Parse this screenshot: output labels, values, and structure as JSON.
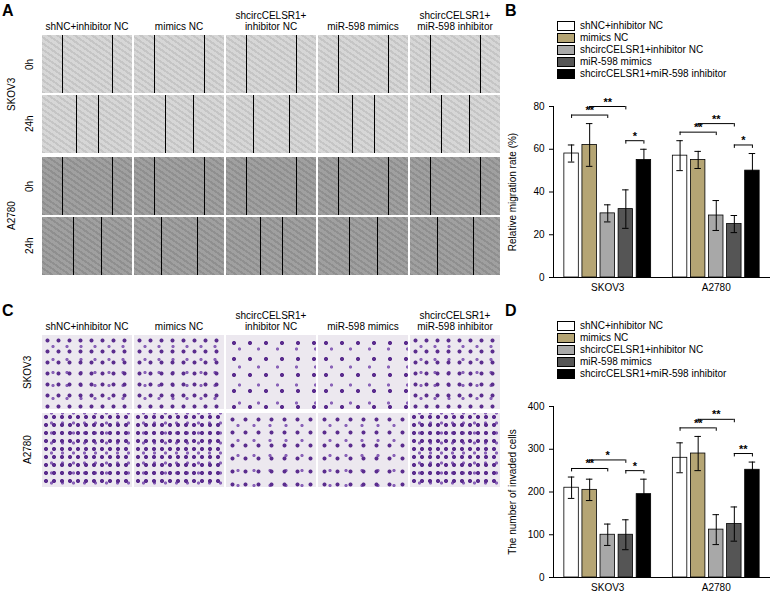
{
  "figure": {
    "panel_labels": [
      "A",
      "B",
      "C",
      "D"
    ],
    "image_panels": [
      {
        "columns": [
          "shNC+inhibitor NC",
          "mimics NC",
          "shcircCELSR1+ inhibitor NC",
          "miR-598 mimics",
          "shcircCELSR1+ miR-598 inhibitor"
        ],
        "rows": [
          {
            "cell_line": "SKOV3",
            "times": [
              "0h",
              "24h"
            ]
          },
          {
            "cell_line": "A2780",
            "times": [
              "0h",
              "24h"
            ]
          }
        ]
      },
      {
        "columns": [
          "shNC+inhibitor NC",
          "mimics NC",
          "shcircCELSR1+ inhibitor NC",
          "miR-598 mimics",
          "shcircCELSR1+ miR-598 inhibitor"
        ],
        "rows": [
          {
            "cell_line": "SKOV3"
          },
          {
            "cell_line": "A2780"
          }
        ]
      }
    ]
  },
  "chart_data": [
    {
      "type": "bar",
      "y_label": "Relative migration rate (%)",
      "categories": [
        "SKOV3",
        "A2780"
      ],
      "series": [
        {
          "name": "shNC+inhibitor NC",
          "color": "#ffffff",
          "values": [
            58,
            57
          ],
          "errors": [
            4,
            7
          ]
        },
        {
          "name": "mimics NC",
          "color": "#b5a574",
          "values": [
            62,
            55
          ],
          "errors": [
            10,
            4
          ]
        },
        {
          "name": "shcircCELSR1+inhibitor NC",
          "color": "#a8a8a8",
          "values": [
            30,
            29
          ],
          "errors": [
            4,
            7
          ]
        },
        {
          "name": "miR-598 mimics",
          "color": "#555555",
          "values": [
            32,
            25
          ],
          "errors": [
            9,
            4
          ]
        },
        {
          "name": "shcircCELSR1+miR-598 inhibitor",
          "color": "#000000",
          "values": [
            55,
            50
          ],
          "errors": [
            5,
            8
          ]
        }
      ],
      "ylim": [
        0,
        80
      ],
      "yticks": [
        0,
        20,
        40,
        60,
        80
      ],
      "legend": "top",
      "annotations": [
        {
          "category": "SKOV3",
          "from": "shNC+inhibitor NC",
          "to": "shcircCELSR1+inhibitor NC",
          "label": "**"
        },
        {
          "category": "SKOV3",
          "from": "mimics NC",
          "to": "miR-598 mimics",
          "label": "**"
        },
        {
          "category": "SKOV3",
          "from": "miR-598 mimics",
          "to": "shcircCELSR1+miR-598 inhibitor",
          "label": "*"
        },
        {
          "category": "A2780",
          "from": "shNC+inhibitor NC",
          "to": "shcircCELSR1+inhibitor NC",
          "label": "**"
        },
        {
          "category": "A2780",
          "from": "mimics NC",
          "to": "miR-598 mimics",
          "label": "**"
        },
        {
          "category": "A2780",
          "from": "miR-598 mimics",
          "to": "shcircCELSR1+miR-598 inhibitor",
          "label": "*"
        }
      ]
    },
    {
      "type": "bar",
      "y_label": "The number of invaded cells",
      "categories": [
        "SKOV3",
        "A2780"
      ],
      "series": [
        {
          "name": "shNC+inhibitor NC",
          "color": "#ffffff",
          "values": [
            210,
            280
          ],
          "errors": [
            25,
            35
          ]
        },
        {
          "name": "mimics NC",
          "color": "#b5a574",
          "values": [
            205,
            290
          ],
          "errors": [
            25,
            40
          ]
        },
        {
          "name": "shcircCELSR1+inhibitor NC",
          "color": "#a8a8a8",
          "values": [
            100,
            112
          ],
          "errors": [
            25,
            35
          ]
        },
        {
          "name": "miR-598 mimics",
          "color": "#555555",
          "values": [
            100,
            125
          ],
          "errors": [
            35,
            40
          ]
        },
        {
          "name": "shcircCELSR1+miR-598 inhibitor",
          "color": "#000000",
          "values": [
            195,
            252
          ],
          "errors": [
            35,
            18
          ]
        }
      ],
      "ylim": [
        0,
        400
      ],
      "yticks": [
        0,
        100,
        200,
        300,
        400
      ],
      "legend": "top",
      "annotations": [
        {
          "category": "SKOV3",
          "from": "shNC+inhibitor NC",
          "to": "shcircCELSR1+inhibitor NC",
          "label": "**"
        },
        {
          "category": "SKOV3",
          "from": "mimics NC",
          "to": "miR-598 mimics",
          "label": "*"
        },
        {
          "category": "SKOV3",
          "from": "miR-598 mimics",
          "to": "shcircCELSR1+miR-598 inhibitor",
          "label": "*"
        },
        {
          "category": "A2780",
          "from": "shNC+inhibitor NC",
          "to": "shcircCELSR1+inhibitor NC",
          "label": "**"
        },
        {
          "category": "A2780",
          "from": "mimics NC",
          "to": "miR-598 mimics",
          "label": "**"
        },
        {
          "category": "A2780",
          "from": "miR-598 mimics",
          "to": "shcircCELSR1+miR-598 inhibitor",
          "label": "**"
        }
      ]
    }
  ]
}
